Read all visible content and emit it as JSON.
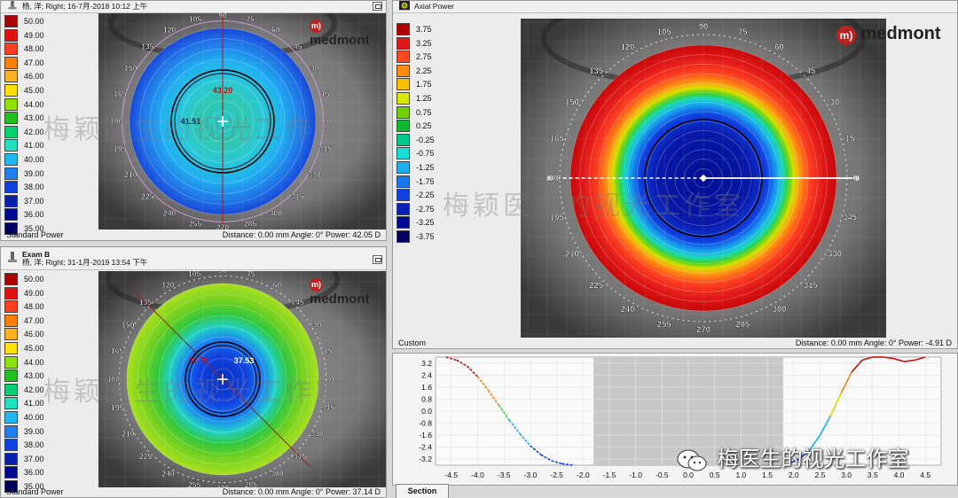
{
  "top_left": {
    "patient": "杨, 洋; Right; 16-7月-2018 10:12 上午",
    "legend": [
      {
        "label": "50.00",
        "color": "#aa0000"
      },
      {
        "label": "49.00",
        "color": "#e01010"
      },
      {
        "label": "48.00",
        "color": "#ff4020"
      },
      {
        "label": "47.00",
        "color": "#ff8000"
      },
      {
        "label": "46.00",
        "color": "#ffb020"
      },
      {
        "label": "45.00",
        "color": "#ffe000"
      },
      {
        "label": "44.00",
        "color": "#90e000"
      },
      {
        "label": "43.00",
        "color": "#20c020"
      },
      {
        "label": "42.00",
        "color": "#00d070"
      },
      {
        "label": "41.00",
        "color": "#20e0c0"
      },
      {
        "label": "40.00",
        "color": "#20b8f0"
      },
      {
        "label": "39.00",
        "color": "#2080f0"
      },
      {
        "label": "38.00",
        "color": "#1040e0"
      },
      {
        "label": "37.00",
        "color": "#0820b0"
      },
      {
        "label": "36.00",
        "color": "#000890"
      },
      {
        "label": "35.00",
        "color": "#000060"
      }
    ],
    "map_values": {
      "upper": "43.20",
      "center": "41.51"
    },
    "axis_labels": [
      "90",
      "105",
      "120",
      "135",
      "150",
      "165",
      "180",
      "195",
      "210",
      "225",
      "240",
      "255",
      "270",
      "285",
      "300",
      "315",
      "330",
      "345",
      "0",
      "15",
      "30",
      "45",
      "60",
      "75"
    ],
    "footer_left": "Standard Power",
    "footer_right": "Distance: 0.00 mm  Angle: 0°  Power: 42.05 D"
  },
  "bottom_left": {
    "exam": "Exam B",
    "patient": "杨, 洋; Right; 31-1月-2019 13:54 下午",
    "legend": [
      {
        "label": "50.00",
        "color": "#aa0000"
      },
      {
        "label": "49.00",
        "color": "#e01010"
      },
      {
        "label": "48.00",
        "color": "#ff4020"
      },
      {
        "label": "47.00",
        "color": "#ff8000"
      },
      {
        "label": "46.00",
        "color": "#ffb020"
      },
      {
        "label": "45.00",
        "color": "#ffe000"
      },
      {
        "label": "44.00",
        "color": "#90e000"
      },
      {
        "label": "43.00",
        "color": "#20c020"
      },
      {
        "label": "42.00",
        "color": "#00d070"
      },
      {
        "label": "41.00",
        "color": "#20e0c0"
      },
      {
        "label": "40.00",
        "color": "#20b8f0"
      },
      {
        "label": "39.00",
        "color": "#2080f0"
      },
      {
        "label": "38.00",
        "color": "#1040e0"
      },
      {
        "label": "37.00",
        "color": "#0820b0"
      },
      {
        "label": "36.00",
        "color": "#000890"
      },
      {
        "label": "35.00",
        "color": "#000060"
      }
    ],
    "map_values": {
      "left": "37.71",
      "right": "37.53"
    },
    "axis_labels": [
      "90",
      "105",
      "120",
      "135",
      "150",
      "165",
      "180",
      "195",
      "210",
      "225",
      "240",
      "255",
      "270",
      "285",
      "300",
      "315",
      "330",
      "345",
      "0",
      "15",
      "30",
      "45",
      "60",
      "75"
    ],
    "footer_left": "Standard Power",
    "footer_right": "Distance: 0.00 mm  Angle: 0°  Power: 37.14 D"
  },
  "axial": {
    "title": "Axial Power",
    "legend": [
      {
        "label": "3.75",
        "color": "#b00000"
      },
      {
        "label": "3.25",
        "color": "#e01818"
      },
      {
        "label": "2.75",
        "color": "#ff4a20"
      },
      {
        "label": "2.25",
        "color": "#ff8c10"
      },
      {
        "label": "1.75",
        "color": "#ffc000"
      },
      {
        "label": "1.25",
        "color": "#d8e800"
      },
      {
        "label": "0.75",
        "color": "#70d000"
      },
      {
        "label": "0.25",
        "color": "#10b830"
      },
      {
        "label": "-0.25",
        "color": "#00c888"
      },
      {
        "label": "-0.75",
        "color": "#18e0d8"
      },
      {
        "label": "-1.25",
        "color": "#20b0f0"
      },
      {
        "label": "-1.75",
        "color": "#1878f0"
      },
      {
        "label": "-2.25",
        "color": "#1040e0"
      },
      {
        "label": "-2.75",
        "color": "#0820b8"
      },
      {
        "label": "-3.25",
        "color": "#000c90"
      },
      {
        "label": "-3.75",
        "color": "#000060"
      }
    ],
    "axis_labels": [
      "90",
      "105",
      "120",
      "135",
      "150",
      "165",
      "180",
      "195",
      "210",
      "225",
      "240",
      "255",
      "270",
      "285",
      "300",
      "315",
      "330",
      "345",
      "0",
      "15",
      "30",
      "45",
      "60",
      "75"
    ],
    "footer_left": "Custom",
    "footer_right": "Distance: 0.00 mm  Angle: 0°  Power: -4.91 D"
  },
  "logo_text": "medmont",
  "logo_mark": "m)",
  "watermark_text": "梅颖医生的视光工作室",
  "wechat_text": "梅医生的视光工作室",
  "section_tab": "Section",
  "chart_data": {
    "type": "line",
    "title": "Section",
    "xlabel": "",
    "ylabel": "",
    "xlim": [
      -4.8,
      4.8
    ],
    "ylim": [
      -3.6,
      3.6
    ],
    "x_ticks": [
      "-4.5",
      "-4.0",
      "-3.5",
      "-3.0",
      "-2.5",
      "-2.0",
      "-1.5",
      "-1.0",
      "-0.5",
      "0.0",
      "0.5",
      "1.0",
      "1.5",
      "2.0",
      "2.5",
      "3.0",
      "3.5",
      "4.0",
      "4.5"
    ],
    "y_ticks": [
      "3.2",
      "2.4",
      "1.6",
      "0.8",
      "0.0",
      "-0.8",
      "-1.6",
      "-2.4",
      "-3.2"
    ],
    "shaded_range": [
      -1.8,
      1.8
    ],
    "series": [
      {
        "name": "left",
        "x": [
          -4.6,
          -4.4,
          -4.2,
          -4.0,
          -3.8,
          -3.6,
          -3.4,
          -3.2,
          -3.0,
          -2.8,
          -2.6,
          -2.4,
          -2.2
        ],
        "y": [
          3.6,
          3.4,
          3.0,
          2.3,
          1.4,
          0.4,
          -0.6,
          -1.5,
          -2.3,
          -2.9,
          -3.3,
          -3.5,
          -3.6
        ]
      },
      {
        "name": "right",
        "x": [
          1.9,
          2.1,
          2.3,
          2.5,
          2.7,
          2.9,
          3.1,
          3.3,
          3.5,
          3.7,
          3.9,
          4.1,
          4.3,
          4.5
        ],
        "y": [
          -3.5,
          -3.2,
          -2.6,
          -1.6,
          -0.3,
          1.2,
          2.6,
          3.4,
          3.6,
          3.6,
          3.5,
          3.3,
          3.4,
          3.6
        ]
      }
    ]
  }
}
